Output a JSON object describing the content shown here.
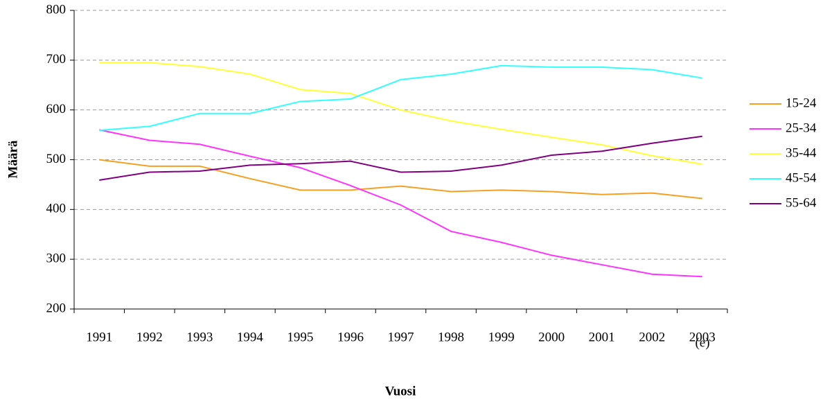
{
  "chart_data": {
    "type": "line",
    "x_label": "Vuosi",
    "y_label": "Määrä",
    "annotation": "(e)",
    "categories": [
      "1991",
      "1992",
      "1993",
      "1994",
      "1995",
      "1996",
      "1997",
      "1998",
      "1999",
      "2000",
      "2001",
      "2002",
      "2003"
    ],
    "series": [
      {
        "name": "15-24",
        "color": "#f5a020",
        "values": [
          500,
          487,
          487,
          462,
          439,
          439,
          447,
          436,
          439,
          436,
          430,
          433,
          422
        ]
      },
      {
        "name": "25-34",
        "color": "#ff33ff",
        "values": [
          560,
          539,
          531,
          507,
          484,
          448,
          409,
          356,
          334,
          308,
          289,
          270,
          265
        ]
      },
      {
        "name": "35-44",
        "color": "#ffff33",
        "values": [
          695,
          695,
          687,
          672,
          641,
          633,
          600,
          578,
          561,
          545,
          530,
          508,
          491
        ]
      },
      {
        "name": "45-54",
        "color": "#33ffff",
        "values": [
          559,
          567,
          593,
          593,
          617,
          622,
          661,
          672,
          689,
          686,
          686,
          681,
          664
        ]
      },
      {
        "name": "55-64",
        "color": "#800080",
        "values": [
          459,
          475,
          477,
          489,
          492,
          497,
          475,
          477,
          489,
          509,
          517,
          533,
          547
        ]
      }
    ],
    "ylim": [
      200,
      800
    ],
    "yticks": [
      200,
      300,
      400,
      500,
      600,
      700,
      800
    ],
    "grid": true,
    "legend": "right"
  }
}
